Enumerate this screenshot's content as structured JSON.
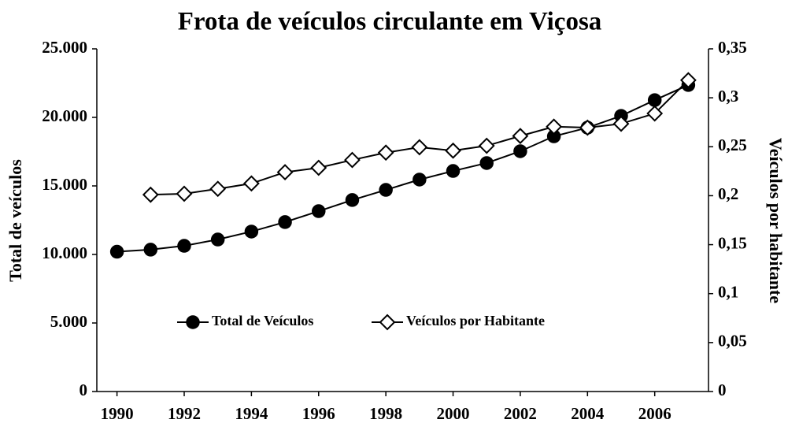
{
  "chart_data": {
    "type": "line",
    "title": "Frota de veículos circulante em Viçosa",
    "y_label": "Total de veículos",
    "y2_label": "Veículos por habitante",
    "x": [
      1990,
      1991,
      1992,
      1993,
      1994,
      1995,
      1996,
      1997,
      1998,
      1999,
      2000,
      2001,
      2002,
      2003,
      2004,
      2005,
      2006,
      2007
    ],
    "series": [
      {
        "name": "Total de Veículos",
        "color": "#000000",
        "marker": "circle",
        "values": [
          10200,
          10350,
          10630,
          11090,
          11670,
          12360,
          13160,
          13970,
          14710,
          15460,
          16090,
          16670,
          17530,
          18620,
          19250,
          20110,
          21260,
          22360
        ]
      },
      {
        "name": "Veículos por Habitante",
        "color": "#000000",
        "marker": "diamond",
        "axis": "y2",
        "values": [
          null,
          0.201,
          0.202,
          0.207,
          0.2125,
          0.224,
          0.2285,
          0.2365,
          0.244,
          0.2495,
          0.246,
          0.251,
          0.261,
          0.2705,
          0.2695,
          0.2735,
          0.284,
          0.318
        ]
      }
    ],
    "xlim": [
      1989.4,
      2007.6
    ],
    "xticks": [
      1990,
      1992,
      1994,
      1996,
      1998,
      2000,
      2002,
      2004,
      2006
    ],
    "ylim": [
      0,
      25000
    ],
    "yticks": [
      0,
      {
        "value": 5000,
        "label": "5.000"
      },
      {
        "value": 10000,
        "label": "10.000"
      },
      {
        "value": 15000,
        "label": "15.000"
      },
      {
        "value": 20000,
        "label": "20.000"
      },
      {
        "value": 25000,
        "label": "25.000"
      }
    ],
    "y2lim": [
      0,
      0.35
    ],
    "y2ticks": [
      0,
      {
        "value": 0.05,
        "label": "0,05"
      },
      {
        "value": 0.1,
        "label": "0,1"
      },
      {
        "value": 0.15,
        "label": "0,15"
      },
      {
        "value": 0.2,
        "label": "0,2"
      },
      {
        "value": 0.25,
        "label": "0,25"
      },
      {
        "value": 0.3,
        "label": "0,3"
      },
      {
        "value": 0.35,
        "label": "0,35"
      }
    ],
    "grid": false,
    "legend": "center"
  }
}
